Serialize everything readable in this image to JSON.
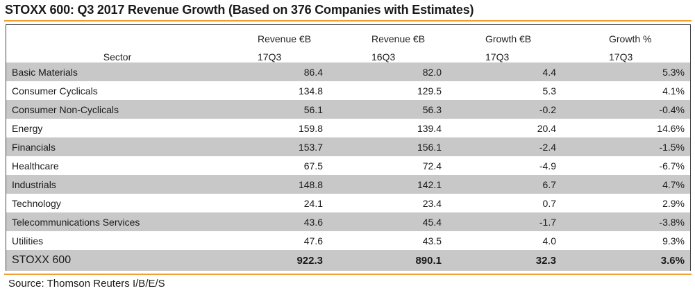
{
  "title": "STOXX 600: Q3 2017 Revenue Growth (Based on 376 Companies with Estimates)",
  "source": "Source: Thomson Reuters I/B/E/S",
  "colors": {
    "accent_rule": "#f0a030",
    "shade": "#c8c8c8"
  },
  "chart_data": {
    "type": "table",
    "header": {
      "sector": "Sector",
      "columns": [
        {
          "line1": "Revenue €B",
          "line2": "17Q3"
        },
        {
          "line1": "Revenue €B",
          "line2": "16Q3"
        },
        {
          "line1": "Growth €B",
          "line2": "17Q3"
        },
        {
          "line1": "Growth %",
          "line2": "17Q3"
        }
      ]
    },
    "rows": [
      {
        "sector": "Basic Materials",
        "rev17": "86.4",
        "rev16": "82.0",
        "growth_b": "4.4",
        "growth_pct": "5.3%",
        "shaded": true
      },
      {
        "sector": "Consumer Cyclicals",
        "rev17": "134.8",
        "rev16": "129.5",
        "growth_b": "5.3",
        "growth_pct": "4.1%",
        "shaded": false
      },
      {
        "sector": "Consumer Non-Cyclicals",
        "rev17": "56.1",
        "rev16": "56.3",
        "growth_b": "-0.2",
        "growth_pct": "-0.4%",
        "shaded": true
      },
      {
        "sector": "Energy",
        "rev17": "159.8",
        "rev16": "139.4",
        "growth_b": "20.4",
        "growth_pct": "14.6%",
        "shaded": false
      },
      {
        "sector": "Financials",
        "rev17": "153.7",
        "rev16": "156.1",
        "growth_b": "-2.4",
        "growth_pct": "-1.5%",
        "shaded": true
      },
      {
        "sector": "Healthcare",
        "rev17": "67.5",
        "rev16": "72.4",
        "growth_b": "-4.9",
        "growth_pct": "-6.7%",
        "shaded": false
      },
      {
        "sector": "Industrials",
        "rev17": "148.8",
        "rev16": "142.1",
        "growth_b": "6.7",
        "growth_pct": "4.7%",
        "shaded": true
      },
      {
        "sector": "Technology",
        "rev17": "24.1",
        "rev16": "23.4",
        "growth_b": "0.7",
        "growth_pct": "2.9%",
        "shaded": false
      },
      {
        "sector": "Telecommunications Services",
        "rev17": "43.6",
        "rev16": "45.4",
        "growth_b": "-1.7",
        "growth_pct": "-3.8%",
        "shaded": true
      },
      {
        "sector": "Utilities",
        "rev17": "47.6",
        "rev16": "43.5",
        "growth_b": "4.0",
        "growth_pct": "9.3%",
        "shaded": false
      }
    ],
    "total": {
      "sector": "STOXX 600",
      "rev17": "922.3",
      "rev16": "890.1",
      "growth_b": "32.3",
      "growth_pct": "3.6%"
    }
  }
}
